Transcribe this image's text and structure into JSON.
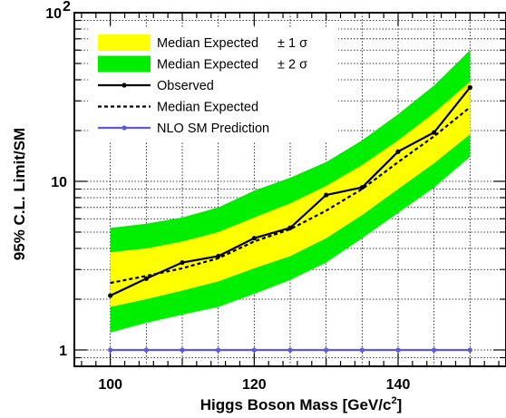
{
  "chart_data": {
    "type": "line",
    "title": "",
    "xlabel": "Higgs Boson Mass [GeV/c",
    "xlabel_sup": "2",
    "xlabel_end": "]",
    "ylabel": "95% C.L. Limit/SM",
    "xlim": [
      95,
      155
    ],
    "ylim": [
      0.8,
      100
    ],
    "yscale": "log",
    "grid": true,
    "legend_position": "top-left",
    "x_ticks": [
      {
        "value": 100,
        "label": "100"
      },
      {
        "value": 120,
        "label": "120"
      },
      {
        "value": 140,
        "label": "140"
      }
    ],
    "y_ticks": [
      {
        "value": 1,
        "label": "1",
        "sup": ""
      },
      {
        "value": 10,
        "label": "10",
        "sup": ""
      },
      {
        "value": 100,
        "label": "10",
        "sup": "2"
      }
    ],
    "x": [
      100,
      105,
      110,
      115,
      120,
      125,
      130,
      135,
      140,
      145,
      150
    ],
    "series": [
      {
        "name": "Median Expected ± 2 σ",
        "kind": "band",
        "color": "#00ee00",
        "lower": [
          1.27,
          1.45,
          1.62,
          1.8,
          2.15,
          2.6,
          3.3,
          4.6,
          6.5,
          9.2,
          14.0
        ],
        "upper": [
          5.3,
          5.6,
          6.1,
          7.0,
          8.8,
          10.5,
          13.0,
          17.5,
          25.0,
          37.0,
          60.0
        ]
      },
      {
        "name": "Median Expected ± 1 σ",
        "kind": "band",
        "color": "#ffff00",
        "lower": [
          1.8,
          2.0,
          2.25,
          2.55,
          3.05,
          3.6,
          4.6,
          6.3,
          9.0,
          12.8,
          19.0
        ],
        "upper": [
          3.8,
          4.0,
          4.4,
          5.0,
          6.1,
          7.4,
          9.4,
          12.5,
          17.5,
          25.5,
          39.0
        ]
      },
      {
        "name": "Observed",
        "kind": "line",
        "color": "#000000",
        "values": [
          2.1,
          2.65,
          3.3,
          3.6,
          4.6,
          5.3,
          8.3,
          9.2,
          15.0,
          19.5,
          36.0
        ]
      },
      {
        "name": "Median Expected",
        "kind": "dashed",
        "color": "#000000",
        "values": [
          2.5,
          2.75,
          3.05,
          3.5,
          4.4,
          5.2,
          6.7,
          9.0,
          13.0,
          18.5,
          27.5
        ]
      },
      {
        "name": "NLO SM Prediction",
        "kind": "line",
        "color": "#5b5bdc",
        "values": [
          1,
          1,
          1,
          1,
          1,
          1,
          1,
          1,
          1,
          1,
          1
        ]
      }
    ],
    "legend": [
      {
        "label": "Median Expected",
        "sym": "± 1 σ",
        "kind": "band",
        "color": "#ffff00"
      },
      {
        "label": "Median Expected",
        "sym": "± 2 σ",
        "kind": "band",
        "color": "#00ee00"
      },
      {
        "label": "Observed",
        "sym": "",
        "kind": "line",
        "color": "#000000"
      },
      {
        "label": "Median Expected",
        "sym": "",
        "kind": "dashed",
        "color": "#000000"
      },
      {
        "label": "NLO SM Prediction",
        "sym": "",
        "kind": "line",
        "color": "#5b5bdc"
      }
    ]
  }
}
